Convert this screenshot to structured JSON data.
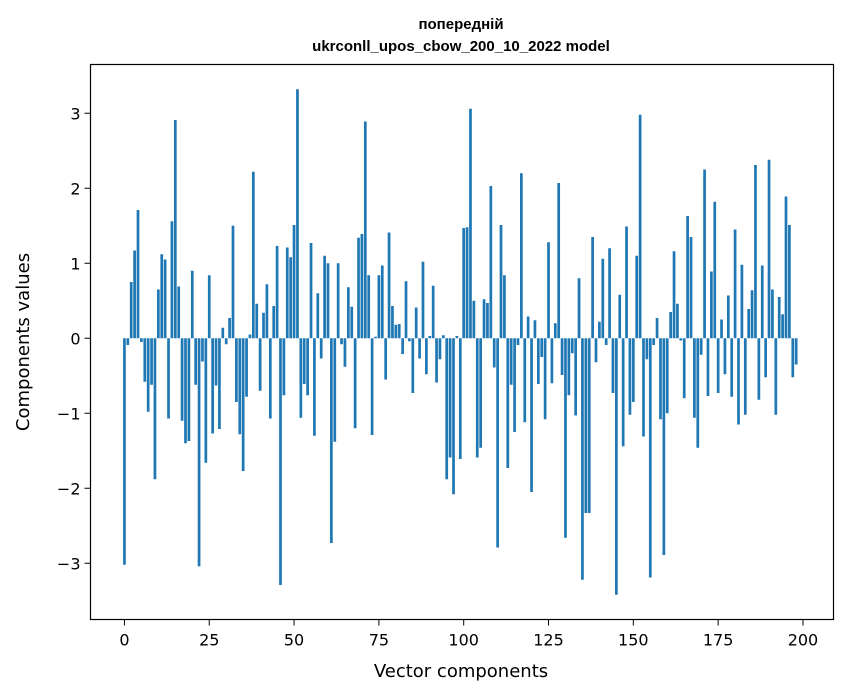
{
  "chart_data": {
    "type": "bar",
    "title_line1": "попередній",
    "title_line2": "ukrconll_upos_cbow_200_10_2022 model",
    "xlabel": "Vector components",
    "ylabel": "Components values",
    "xlim": [
      -10,
      209
    ],
    "ylim": [
      -3.75,
      3.65
    ],
    "xticks": [
      {
        "value": 0,
        "label": "0"
      },
      {
        "value": 25,
        "label": "25"
      },
      {
        "value": 50,
        "label": "50"
      },
      {
        "value": 75,
        "label": "75"
      },
      {
        "value": 100,
        "label": "100"
      },
      {
        "value": 125,
        "label": "125"
      },
      {
        "value": 150,
        "label": "150"
      },
      {
        "value": 175,
        "label": "175"
      },
      {
        "value": 200,
        "label": "200"
      }
    ],
    "yticks": [
      {
        "value": -3,
        "label": "−3"
      },
      {
        "value": -2,
        "label": "−2"
      },
      {
        "value": -1,
        "label": "−1"
      },
      {
        "value": 0,
        "label": "0"
      },
      {
        "value": 1,
        "label": "1"
      },
      {
        "value": 2,
        "label": "2"
      },
      {
        "value": 3,
        "label": "3"
      }
    ],
    "bar_color": "#1f77b4",
    "grid": false,
    "values": [
      -3.02,
      -0.09,
      0.75,
      1.17,
      1.71,
      -0.05,
      -0.58,
      -0.98,
      -0.62,
      -1.88,
      0.65,
      1.12,
      1.05,
      -1.07,
      1.56,
      2.91,
      0.69,
      -1.1,
      -1.4,
      -1.37,
      0.9,
      -0.62,
      -3.04,
      -0.31,
      -1.66,
      0.84,
      -1.27,
      -0.63,
      -1.21,
      0.14,
      -0.08,
      0.27,
      1.5,
      -0.85,
      -1.28,
      -1.77,
      -0.78,
      0.05,
      2.22,
      0.46,
      -0.7,
      0.34,
      0.72,
      -1.07,
      0.43,
      1.23,
      -3.29,
      -0.76,
      1.21,
      1.08,
      1.51,
      3.32,
      -1.06,
      -0.61,
      -0.76,
      1.27,
      -1.3,
      0.6,
      -0.27,
      1.1,
      1.0,
      -2.73,
      -1.38,
      1.0,
      -0.08,
      -0.38,
      0.68,
      0.42,
      -1.2,
      1.34,
      1.39,
      2.89,
      0.84,
      -1.29,
      0.02,
      0.84,
      0.97,
      -0.55,
      1.41,
      0.43,
      0.18,
      0.19,
      -0.21,
      0.76,
      -0.04,
      -0.73,
      0.41,
      -0.27,
      1.02,
      -0.48,
      0.03,
      0.7,
      -0.59,
      -0.28,
      0.04,
      -1.88,
      -1.59,
      -2.08,
      0.03,
      -1.61,
      1.47,
      1.48,
      3.06,
      0.5,
      -1.59,
      -1.46,
      0.52,
      0.47,
      2.03,
      -0.39,
      -2.79,
      1.51,
      0.84,
      -1.73,
      -0.62,
      -1.25,
      -0.09,
      2.2,
      -1.12,
      0.29,
      -2.05,
      0.24,
      -0.61,
      -0.25,
      -1.08,
      1.28,
      -0.6,
      0.2,
      2.07,
      -0.49,
      -2.66,
      -0.76,
      -0.2,
      -1.03,
      0.8,
      -3.22,
      -2.33,
      -2.33,
      1.35,
      -0.32,
      0.22,
      1.06,
      -0.09,
      1.2,
      -0.73,
      -3.42,
      0.58,
      -1.44,
      1.49,
      -1.02,
      -0.85,
      1.1,
      2.98,
      -1.31,
      -0.28,
      -3.19,
      -0.09,
      0.27,
      -1.08,
      -2.89,
      -1.0,
      0.35,
      1.16,
      0.46,
      -0.03,
      -0.8,
      1.63,
      1.35,
      -1.06,
      -1.46,
      -0.22,
      2.25,
      -0.77,
      0.89,
      1.82,
      -0.73,
      0.25,
      -0.48,
      0.57,
      -0.78,
      1.45,
      -1.15,
      0.98,
      -1.02,
      0.39,
      0.64,
      2.31,
      -0.82,
      0.97,
      -0.52,
      2.38,
      0.65,
      -1.02,
      0.55,
      0.32,
      1.89,
      1.51,
      -0.52,
      -0.35
    ]
  }
}
